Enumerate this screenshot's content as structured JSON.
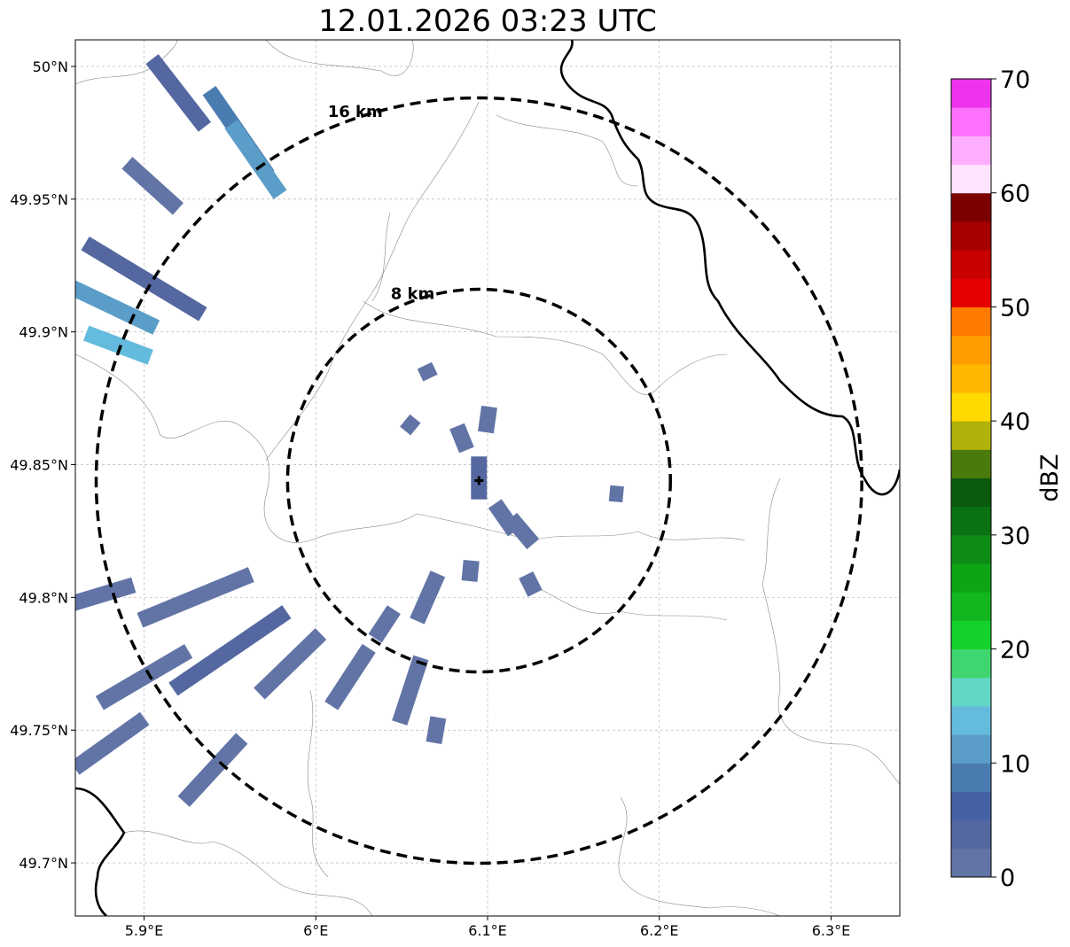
{
  "title": "12.01.2026 03:23 UTC",
  "map": {
    "lon_range": [
      5.86,
      6.34
    ],
    "lat_range": [
      49.68,
      50.01
    ],
    "lon_ticks": [
      {
        "value": 5.9,
        "label": "5.9°E"
      },
      {
        "value": 6.0,
        "label": "6°E"
      },
      {
        "value": 6.1,
        "label": "6.1°E"
      },
      {
        "value": 6.2,
        "label": "6.2°E"
      },
      {
        "value": 6.3,
        "label": "6.3°E"
      }
    ],
    "lat_ticks": [
      {
        "value": 50.0,
        "label": "50°N"
      },
      {
        "value": 49.95,
        "label": "49.95°N"
      },
      {
        "value": 49.9,
        "label": "49.9°N"
      },
      {
        "value": 49.85,
        "label": "49.85°N"
      },
      {
        "value": 49.8,
        "label": "49.8°N"
      },
      {
        "value": 49.75,
        "label": "49.75°N"
      },
      {
        "value": 49.7,
        "label": "49.7°N"
      }
    ],
    "grid": true,
    "center": {
      "lon": 6.095,
      "lat": 49.844
    },
    "rings": [
      {
        "radius_km": 8,
        "label": "8 km"
      },
      {
        "radius_km": 16,
        "label": "16 km"
      }
    ]
  },
  "colorbar": {
    "label": "dBZ",
    "min": 0,
    "max": 70,
    "ticks": [
      0,
      10,
      20,
      30,
      40,
      50,
      60,
      70
    ],
    "colors": [
      "#6274a6",
      "#5467a0",
      "#4662a4",
      "#4b7cb1",
      "#5a9dc8",
      "#64bbdd",
      "#62d7c6",
      "#3fd66f",
      "#15d12b",
      "#12b720",
      "#0fa416",
      "#0d8c15",
      "#0a7212",
      "#0a5b0d",
      "#4a7a0b",
      "#b0b10a",
      "#ffd900",
      "#ffb700",
      "#ff9c00",
      "#ff7b00",
      "#e60000",
      "#c90000",
      "#a70000",
      "#7d0000",
      "#ffe3ff",
      "#ffaeff",
      "#ff70ff",
      "#ee33ee"
    ]
  },
  "echoes": [
    {
      "lon": 5.92,
      "lat": 49.99,
      "len_deg": 0.05,
      "dbz": 3
    },
    {
      "lon": 5.955,
      "lat": 49.975,
      "len_deg": 0.06,
      "dbz": 8
    },
    {
      "lon": 5.965,
      "lat": 49.965,
      "len_deg": 0.05,
      "dbz": 10
    },
    {
      "lon": 5.905,
      "lat": 49.955,
      "len_deg": 0.04,
      "dbz": 2
    },
    {
      "lon": 5.9,
      "lat": 49.92,
      "len_deg": 0.08,
      "dbz": 4
    },
    {
      "lon": 5.88,
      "lat": 49.91,
      "len_deg": 0.06,
      "dbz": 10
    },
    {
      "lon": 5.885,
      "lat": 49.895,
      "len_deg": 0.04,
      "dbz": 14
    },
    {
      "lon": 5.93,
      "lat": 49.8,
      "len_deg": 0.07,
      "dbz": 2
    },
    {
      "lon": 5.95,
      "lat": 49.78,
      "len_deg": 0.08,
      "dbz": 4
    },
    {
      "lon": 5.9,
      "lat": 49.77,
      "len_deg": 0.06,
      "dbz": 2
    },
    {
      "lon": 5.87,
      "lat": 49.8,
      "len_deg": 0.05,
      "dbz": 1
    },
    {
      "lon": 5.985,
      "lat": 49.775,
      "len_deg": 0.05,
      "dbz": 1
    },
    {
      "lon": 6.02,
      "lat": 49.77,
      "len_deg": 0.04,
      "dbz": 2
    },
    {
      "lon": 6.055,
      "lat": 49.765,
      "len_deg": 0.04,
      "dbz": 2
    },
    {
      "lon": 5.88,
      "lat": 49.745,
      "len_deg": 0.05,
      "dbz": 1
    },
    {
      "lon": 5.94,
      "lat": 49.735,
      "len_deg": 0.05,
      "dbz": 1
    },
    {
      "lon": 6.095,
      "lat": 49.845,
      "len_deg": 0.025,
      "dbz": 3
    },
    {
      "lon": 6.11,
      "lat": 49.83,
      "len_deg": 0.02,
      "dbz": 1
    },
    {
      "lon": 6.12,
      "lat": 49.825,
      "len_deg": 0.02,
      "dbz": 1
    },
    {
      "lon": 6.085,
      "lat": 49.86,
      "len_deg": 0.015,
      "dbz": 1
    },
    {
      "lon": 6.1,
      "lat": 49.867,
      "len_deg": 0.015,
      "dbz": 1
    },
    {
      "lon": 6.065,
      "lat": 49.8,
      "len_deg": 0.03,
      "dbz": 1
    },
    {
      "lon": 6.04,
      "lat": 49.79,
      "len_deg": 0.02,
      "dbz": 1
    },
    {
      "lon": 6.065,
      "lat": 49.885,
      "len_deg": 0.008,
      "dbz": 1
    },
    {
      "lon": 6.055,
      "lat": 49.865,
      "len_deg": 0.008,
      "dbz": 1
    },
    {
      "lon": 6.175,
      "lat": 49.839,
      "len_deg": 0.008,
      "dbz": 1
    },
    {
      "lon": 6.125,
      "lat": 49.805,
      "len_deg": 0.012,
      "dbz": 1
    },
    {
      "lon": 6.09,
      "lat": 49.81,
      "len_deg": 0.012,
      "dbz": 1
    },
    {
      "lon": 6.07,
      "lat": 49.75,
      "len_deg": 0.015,
      "dbz": 1
    }
  ]
}
